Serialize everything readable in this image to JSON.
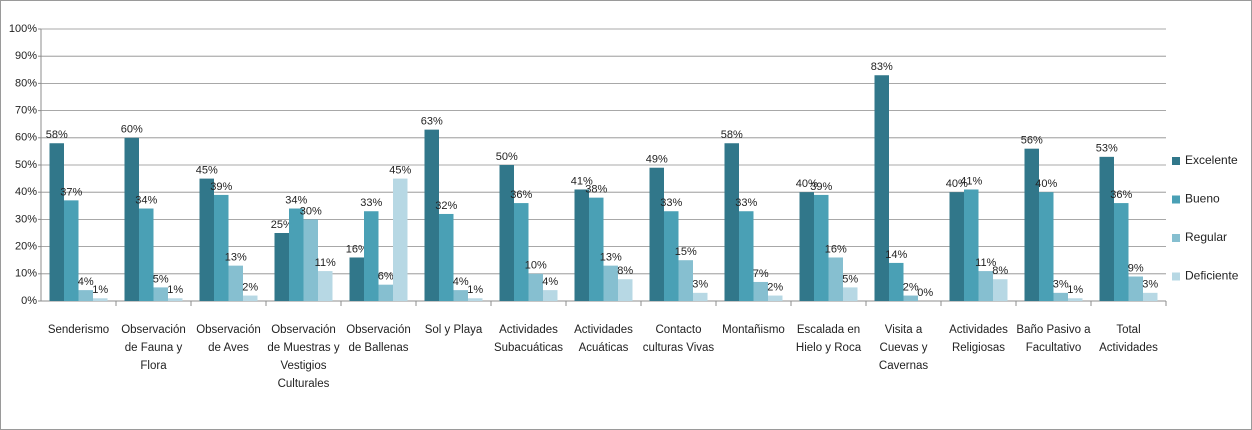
{
  "chart_data": {
    "type": "bar",
    "categories": [
      "Senderismo",
      "Observación de Fauna y Flora",
      "Observación de Aves",
      "Observación de Muestras y Vestigios Culturales",
      "Observación de Ballenas",
      "Sol y Playa",
      "Actividades Subacuáticas",
      "Actividades Acuáticas",
      "Contacto culturas Vivas",
      "Montañismo",
      "Escalada en Hielo y Roca",
      "Visita a Cuevas y Cavernas",
      "Actividades Religiosas",
      "Baño Pasivo a Facultativo",
      "Total Actividades"
    ],
    "series": [
      {
        "name": "Excelente",
        "color": "#31778a",
        "values": [
          58,
          60,
          45,
          25,
          16,
          63,
          50,
          41,
          49,
          58,
          40,
          83,
          40,
          56,
          53
        ],
        "value_labels": [
          "58%",
          "60%",
          "45%",
          "25%",
          "16%",
          "63%",
          "50%",
          "41%",
          "49%",
          "58%",
          "40%",
          "83%",
          "40%",
          "56%",
          "53%"
        ]
      },
      {
        "name": "Bueno",
        "color": "#4aa0b5",
        "values": [
          37,
          34,
          39,
          34,
          33,
          32,
          36,
          38,
          33,
          33,
          39,
          14,
          41,
          40,
          36
        ],
        "value_labels": [
          "37%",
          "34%",
          "39%",
          "34%",
          "33%",
          "32%",
          "36%",
          "38%",
          "33%",
          "33%",
          "39%",
          "14%",
          "41%",
          "40%",
          "36%"
        ]
      },
      {
        "name": "Regular",
        "color": "#86bfd0",
        "values": [
          4,
          5,
          13,
          30,
          6,
          4,
          10,
          13,
          15,
          7,
          16,
          2,
          11,
          3,
          9
        ],
        "value_labels": [
          "4%",
          "5%",
          "13%",
          "30%",
          "6%",
          "4%",
          "10%",
          "13%",
          "15%",
          "7%",
          "16%",
          "2%",
          "11%",
          "3%",
          "9%"
        ]
      },
      {
        "name": "Deficiente",
        "color": "#b7d8e4",
        "values": [
          1,
          1,
          2,
          11,
          45,
          1,
          4,
          8,
          3,
          2,
          5,
          0,
          8,
          1,
          3
        ],
        "value_labels": [
          "1%",
          "1%",
          "2%",
          "11%",
          "45%",
          "1%",
          "4%",
          "8%",
          "3%",
          "2%",
          "5%",
          "0%",
          "8%",
          "1%",
          "3%"
        ]
      }
    ],
    "ylim": [
      0,
      100
    ],
    "yticks": [
      {
        "value": 0,
        "label": "0%"
      },
      {
        "value": 10,
        "label": "10%"
      },
      {
        "value": 20,
        "label": "20%"
      },
      {
        "value": 30,
        "label": "30%"
      },
      {
        "value": 40,
        "label": "40%"
      },
      {
        "value": 50,
        "label": "50%"
      },
      {
        "value": 60,
        "label": "60%"
      },
      {
        "value": 70,
        "label": "70%"
      },
      {
        "value": 80,
        "label": "80%"
      },
      {
        "value": 90,
        "label": "90%"
      },
      {
        "value": 100,
        "label": "100%"
      }
    ],
    "grid": true,
    "legend": "right"
  }
}
